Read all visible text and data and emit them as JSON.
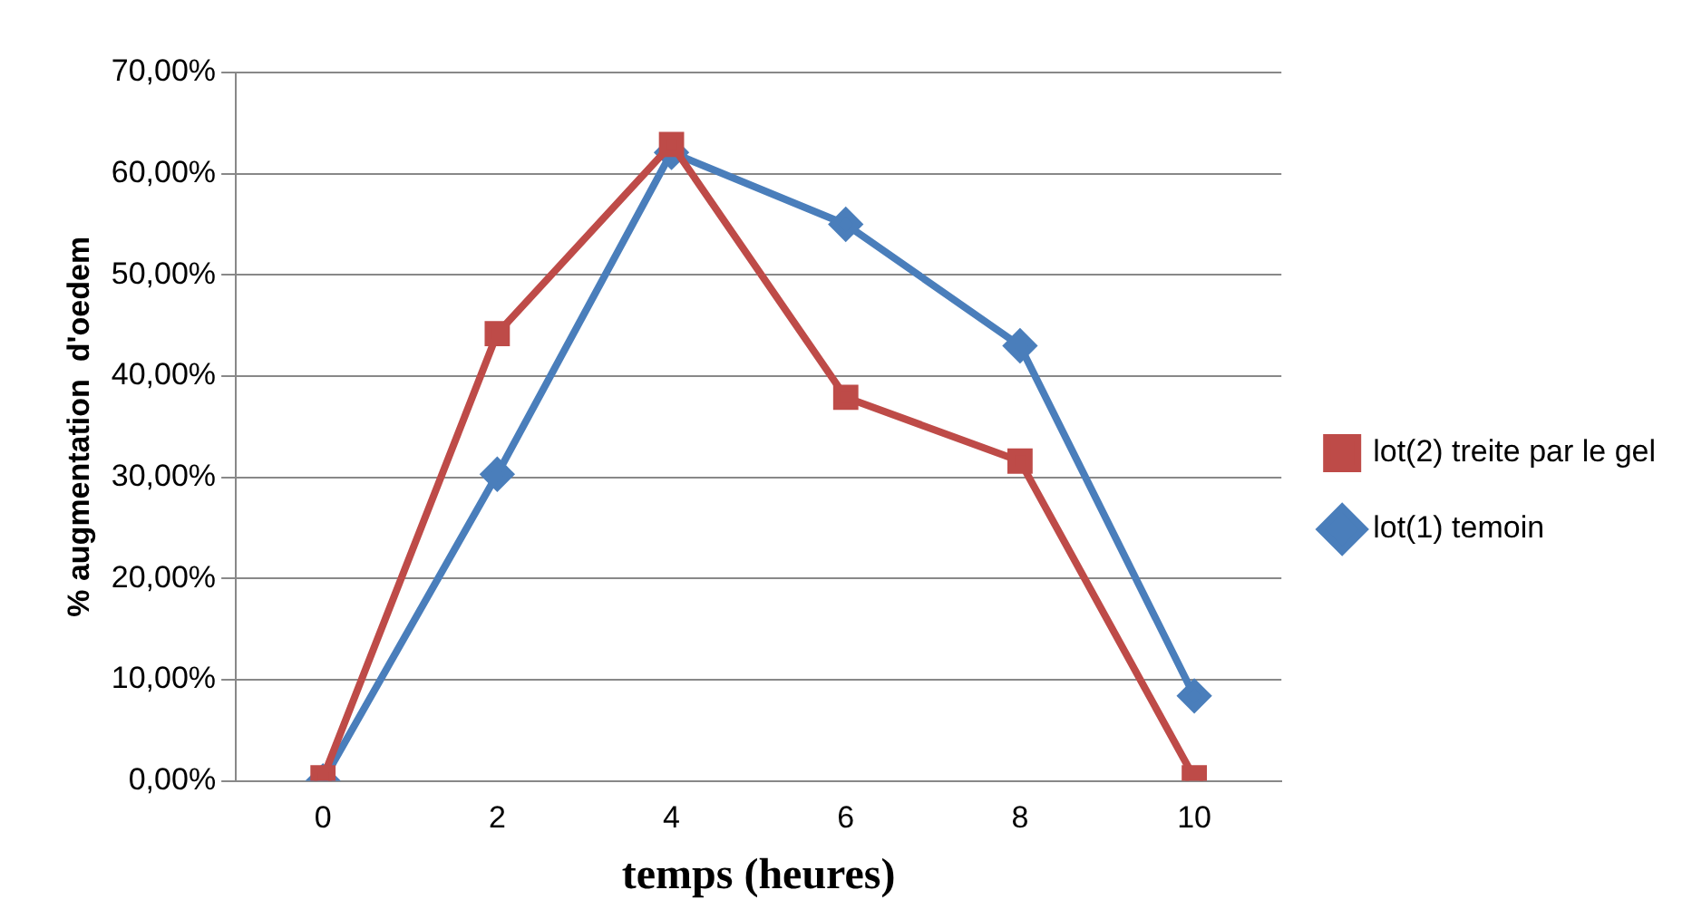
{
  "chart_data": {
    "type": "line",
    "xlabel": "temps (heures)",
    "ylabel": "% augmentation  d'oedem",
    "categories": [
      "0",
      "2",
      "4",
      "6",
      "8",
      "10"
    ],
    "series": [
      {
        "name": "lot(1) temoin",
        "color": "#4a7ebb",
        "marker": "diamond",
        "values": [
          0,
          30.3,
          62.1,
          55,
          43,
          8.4
        ]
      },
      {
        "name": "lot(2) treite par le gel",
        "color": "#be4b48",
        "marker": "square",
        "values": [
          0.3,
          44.2,
          62.9,
          37.9,
          31.6,
          0.3
        ]
      }
    ],
    "ylim": [
      0,
      70
    ],
    "yticks": [
      {
        "value": 0,
        "label": "0,00%"
      },
      {
        "value": 10,
        "label": "10,00%"
      },
      {
        "value": 20,
        "label": "20,00%"
      },
      {
        "value": 30,
        "label": "30,00%"
      },
      {
        "value": 40,
        "label": "40,00%"
      },
      {
        "value": 50,
        "label": "50,00%"
      },
      {
        "value": 60,
        "label": "60,00%"
      },
      {
        "value": 70,
        "label": "70,00%"
      }
    ],
    "grid": "y",
    "legend": "right",
    "line_style": "solid"
  }
}
